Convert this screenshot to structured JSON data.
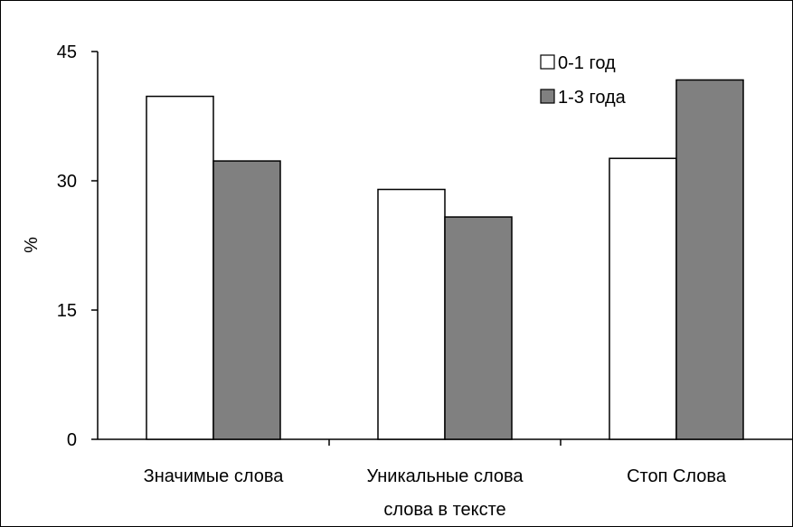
{
  "chart_data": {
    "type": "bar",
    "title": "",
    "xlabel": "",
    "ylabel": "%",
    "ylim": [
      0,
      45
    ],
    "yticks": [
      "0",
      "15",
      "30",
      "45"
    ],
    "categories": [
      [
        "Значимые слова"
      ],
      [
        "Уникальные слова",
        "слова в тексте"
      ],
      [
        "Стоп Слова"
      ]
    ],
    "series": [
      {
        "name": "0-1 год",
        "color": "#ffffff",
        "values": [
          39.8,
          29.0,
          32.6
        ]
      },
      {
        "name": "1-3 года",
        "color": "#808080",
        "values": [
          32.3,
          25.8,
          41.7
        ]
      }
    ],
    "grid": false,
    "legend_position": "top-right"
  }
}
